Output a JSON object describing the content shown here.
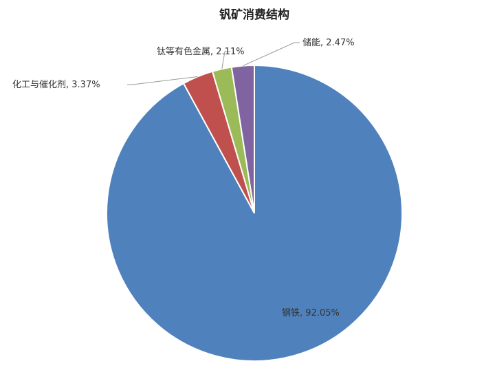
{
  "chart_data": {
    "type": "pie",
    "title": "钒矿消费结构",
    "categories": [
      "钢铁",
      "化工与催化剂",
      "钛等有色金属",
      "储能"
    ],
    "values": [
      92.05,
      3.37,
      2.11,
      2.47
    ],
    "value_labels": [
      "92.05%",
      "3.37%",
      "2.11%",
      "2.47%"
    ],
    "label_separator": ", ",
    "colors": [
      "#4f81bd",
      "#c0504d",
      "#9bbb59",
      "#8064a2"
    ]
  }
}
